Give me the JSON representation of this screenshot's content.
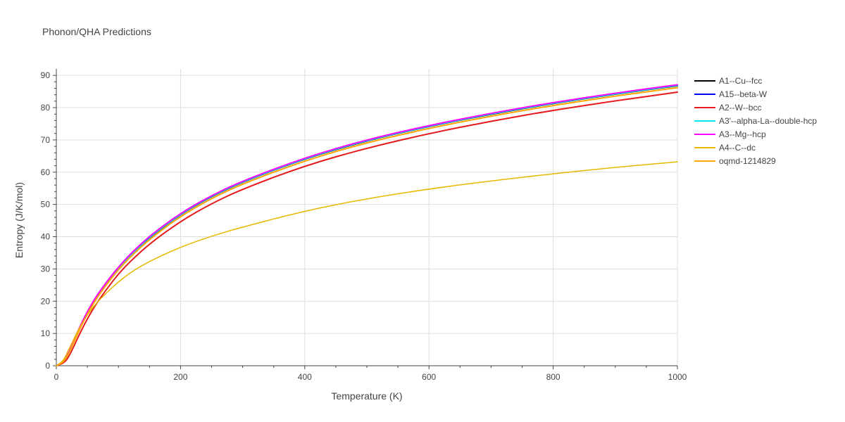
{
  "chart_data": {
    "type": "line",
    "title": "Phonon/QHA Predictions",
    "xlabel": "Temperature (K)",
    "ylabel": "Entropy (J/K/mol)",
    "xlim": [
      0,
      1000
    ],
    "ylim": [
      0,
      92
    ],
    "xticks": [
      0,
      200,
      400,
      600,
      800,
      1000
    ],
    "yticks": [
      0,
      10,
      20,
      30,
      40,
      50,
      60,
      70,
      80,
      90
    ],
    "grid": true,
    "legend_position": "right",
    "series": [
      {
        "name": "A1--Cu--fcc",
        "color": "#000000",
        "width": 2,
        "x": [
          0,
          10,
          20,
          40,
          60,
          80,
          100,
          120,
          150,
          200,
          250,
          300,
          400,
          500,
          600,
          700,
          800,
          900,
          1000
        ],
        "y": [
          0,
          0.8,
          4,
          13,
          20,
          25.5,
          30.3,
          34.5,
          39.8,
          47,
          52.5,
          57,
          64.2,
          69.8,
          74.2,
          78,
          81.3,
          84.2,
          86.8
        ]
      },
      {
        "name": "A15--beta-W",
        "color": "#0000ff",
        "width": 2,
        "x": [
          0,
          10,
          20,
          40,
          60,
          80,
          100,
          120,
          150,
          200,
          250,
          300,
          400,
          500,
          600,
          700,
          800,
          900,
          1000
        ],
        "y": [
          0,
          0.8,
          4,
          13,
          20,
          25.5,
          30.3,
          34.5,
          39.9,
          47.1,
          52.6,
          57.1,
          64.3,
          69.9,
          74.3,
          78.1,
          81.4,
          84.3,
          86.9
        ]
      },
      {
        "name": "A2--W--bcc",
        "color": "#e41a1c",
        "width": 2,
        "x": [
          0,
          10,
          20,
          40,
          60,
          80,
          100,
          120,
          150,
          200,
          250,
          300,
          400,
          500,
          600,
          700,
          800,
          900,
          1000
        ],
        "y": [
          0,
          0.5,
          2.5,
          11,
          18,
          23.5,
          28.5,
          32.5,
          37.8,
          44.8,
          50.3,
          54.8,
          62,
          67.5,
          72,
          75.8,
          79.2,
          82.1,
          84.8
        ]
      },
      {
        "name": "A3'--alpha-La--double-hcp",
        "color": "#00e5ee",
        "width": 2,
        "x": [
          0,
          10,
          20,
          40,
          60,
          80,
          100,
          120,
          150,
          200,
          250,
          300,
          400,
          500,
          600,
          700,
          800,
          900,
          1000
        ],
        "y": [
          0,
          0.8,
          4,
          13,
          20,
          25.5,
          30.3,
          34.5,
          39.9,
          47.1,
          52.6,
          57.1,
          64.3,
          69.9,
          74.3,
          78.1,
          81.4,
          84.3,
          86.9
        ]
      },
      {
        "name": "A3--Mg--hcp",
        "color": "#ff00ff",
        "width": 2,
        "x": [
          0,
          10,
          20,
          40,
          60,
          80,
          100,
          120,
          150,
          200,
          250,
          300,
          400,
          500,
          600,
          700,
          800,
          900,
          1000
        ],
        "y": [
          0,
          0.8,
          4.2,
          13.2,
          20.3,
          25.8,
          30.6,
          34.8,
          40.2,
          47.3,
          52.8,
          57.3,
          64.5,
          70.1,
          74.5,
          78.3,
          81.6,
          84.5,
          87.1
        ]
      },
      {
        "name": "A4--C--dc",
        "color": "#e6b800",
        "width": 1.5,
        "x": [
          0,
          10,
          20,
          40,
          60,
          80,
          100,
          120,
          150,
          200,
          250,
          300,
          400,
          500,
          600,
          700,
          800,
          900,
          1000
        ],
        "y": [
          0,
          1,
          5,
          13,
          18.5,
          22.5,
          26,
          29,
          32.4,
          36.8,
          40.2,
          43,
          48,
          51.8,
          54.8,
          57.3,
          59.5,
          61.5,
          63.2
        ]
      },
      {
        "name": "oqmd-1214829",
        "color": "#ffa500",
        "width": 2,
        "x": [
          0,
          10,
          20,
          40,
          60,
          80,
          100,
          120,
          150,
          200,
          250,
          300,
          400,
          500,
          600,
          700,
          800,
          900,
          1000
        ],
        "y": [
          0,
          0.7,
          3.6,
          12.5,
          19.5,
          25,
          29.8,
          33.9,
          39.2,
          46.4,
          51.9,
          56.4,
          63.6,
          69.2,
          73.6,
          77.4,
          80.7,
          83.6,
          86.2
        ]
      }
    ]
  }
}
